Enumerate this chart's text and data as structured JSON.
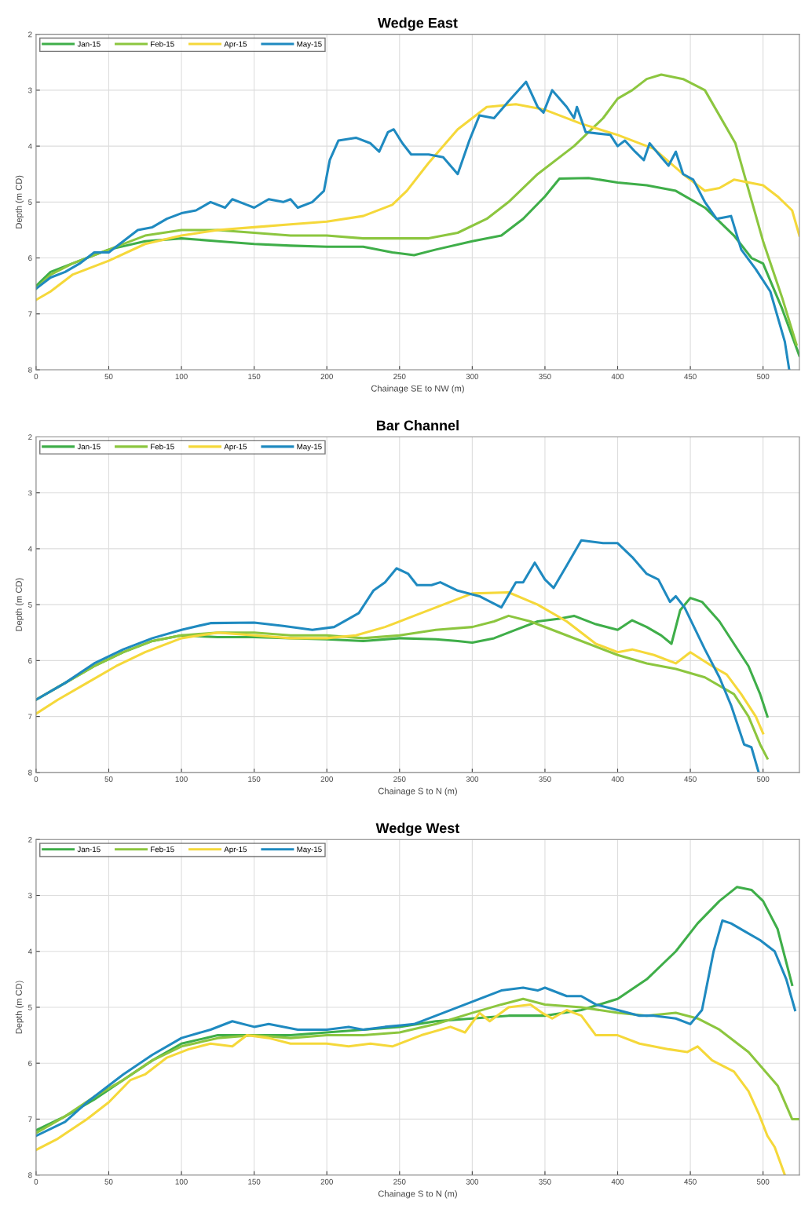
{
  "chart_data": [
    {
      "type": "line",
      "title": "Wedge East",
      "xlabel": "Chainage SE to NW (m)",
      "ylabel": "Depth (m CD)",
      "xlim": [
        0,
        525
      ],
      "ylim": [
        8,
        2
      ],
      "xticks": [
        0,
        50,
        100,
        150,
        200,
        250,
        300,
        350,
        400,
        450,
        500
      ],
      "yticks": [
        2,
        3,
        4,
        5,
        6,
        7,
        8
      ],
      "grid": true,
      "legend": "top left",
      "series": [
        {
          "name": "Jan-15",
          "color": "#3fae49",
          "x": [
            0,
            10,
            25,
            50,
            75,
            100,
            125,
            150,
            175,
            200,
            225,
            245,
            260,
            275,
            300,
            320,
            335,
            350,
            360,
            380,
            400,
            420,
            440,
            460,
            468,
            480,
            492,
            500,
            513,
            525
          ],
          "values": [
            6.5,
            6.25,
            6.1,
            5.85,
            5.7,
            5.65,
            5.7,
            5.75,
            5.78,
            5.8,
            5.8,
            5.9,
            5.95,
            5.85,
            5.7,
            5.6,
            5.3,
            4.9,
            4.58,
            4.57,
            4.65,
            4.7,
            4.8,
            5.1,
            5.3,
            5.6,
            6.0,
            6.1,
            6.9,
            7.75
          ]
        },
        {
          "name": "Feb-15",
          "color": "#8cc63f",
          "x": [
            0,
            10,
            25,
            50,
            75,
            100,
            125,
            150,
            175,
            200,
            225,
            250,
            270,
            290,
            310,
            325,
            345,
            370,
            390,
            400,
            410,
            420,
            430,
            445,
            460,
            481,
            500,
            513,
            523
          ],
          "values": [
            6.55,
            6.3,
            6.1,
            5.85,
            5.6,
            5.5,
            5.5,
            5.55,
            5.6,
            5.6,
            5.65,
            5.65,
            5.65,
            5.55,
            5.3,
            5.0,
            4.5,
            4.0,
            3.5,
            3.15,
            3.0,
            2.8,
            2.72,
            2.8,
            3.0,
            3.95,
            5.7,
            6.7,
            7.55
          ]
        },
        {
          "name": "Apr-15",
          "color": "#f5d83a",
          "x": [
            0,
            10,
            25,
            50,
            75,
            100,
            125,
            150,
            175,
            200,
            225,
            245,
            255,
            270,
            290,
            310,
            330,
            350,
            375,
            400,
            425,
            445,
            460,
            470,
            480,
            500,
            510,
            520,
            525
          ],
          "values": [
            6.75,
            6.6,
            6.3,
            6.05,
            5.75,
            5.6,
            5.5,
            5.45,
            5.4,
            5.35,
            5.25,
            5.05,
            4.8,
            4.3,
            3.7,
            3.3,
            3.25,
            3.35,
            3.6,
            3.8,
            4.05,
            4.5,
            4.8,
            4.75,
            4.6,
            4.7,
            4.9,
            5.15,
            5.6
          ]
        },
        {
          "name": "May-15",
          "color": "#1f8ac0",
          "x": [
            0,
            10,
            20,
            30,
            40,
            50,
            60,
            70,
            80,
            90,
            100,
            110,
            120,
            130,
            135,
            145,
            150,
            160,
            170,
            175,
            180,
            190,
            198,
            202,
            208,
            220,
            230,
            236,
            242,
            246,
            252,
            258,
            270,
            280,
            290,
            298,
            305,
            315,
            325,
            337,
            345,
            349,
            355,
            365,
            370,
            372,
            378,
            395,
            400,
            405,
            412,
            418,
            422,
            430,
            435,
            440,
            445,
            452,
            460,
            468,
            478,
            485,
            495,
            505,
            515,
            518
          ],
          "values": [
            6.55,
            6.35,
            6.25,
            6.1,
            5.9,
            5.9,
            5.7,
            5.5,
            5.45,
            5.3,
            5.2,
            5.15,
            5.0,
            5.1,
            4.95,
            5.05,
            5.1,
            4.95,
            5.0,
            4.95,
            5.1,
            5.0,
            4.8,
            4.25,
            3.9,
            3.85,
            3.95,
            4.1,
            3.75,
            3.7,
            3.95,
            4.15,
            4.15,
            4.2,
            4.5,
            3.9,
            3.45,
            3.5,
            3.2,
            2.85,
            3.3,
            3.4,
            3.0,
            3.3,
            3.5,
            3.3,
            3.75,
            3.8,
            4.0,
            3.9,
            4.1,
            4.25,
            3.95,
            4.2,
            4.35,
            4.1,
            4.5,
            4.6,
            5.0,
            5.3,
            5.25,
            5.85,
            6.2,
            6.6,
            7.5,
            8.0
          ]
        }
      ]
    },
    {
      "type": "line",
      "title": "Bar Channel",
      "xlabel": "Chainage S to N (m)",
      "ylabel": "Depth (m CD)",
      "xlim": [
        0,
        525
      ],
      "ylim": [
        8,
        2
      ],
      "xticks": [
        0,
        50,
        100,
        150,
        200,
        250,
        300,
        350,
        400,
        450,
        500
      ],
      "yticks": [
        2,
        3,
        4,
        5,
        6,
        7,
        8
      ],
      "grid": true,
      "legend": "top left",
      "series": [
        {
          "name": "Jan-15",
          "color": "#3fae49",
          "x": [
            0,
            20,
            40,
            60,
            80,
            100,
            125,
            150,
            175,
            200,
            225,
            250,
            275,
            290,
            300,
            315,
            330,
            345,
            360,
            370,
            385,
            400,
            410,
            420,
            430,
            437,
            443,
            450,
            458,
            470,
            480,
            490,
            498,
            503
          ],
          "values": [
            6.7,
            6.4,
            6.1,
            5.85,
            5.65,
            5.55,
            5.58,
            5.58,
            5.6,
            5.62,
            5.65,
            5.6,
            5.62,
            5.65,
            5.68,
            5.6,
            5.45,
            5.3,
            5.25,
            5.2,
            5.35,
            5.45,
            5.28,
            5.4,
            5.55,
            5.7,
            5.1,
            4.88,
            4.95,
            5.3,
            5.7,
            6.1,
            6.6,
            7.0
          ]
        },
        {
          "name": "Feb-15",
          "color": "#8cc63f",
          "x": [
            0,
            20,
            40,
            60,
            80,
            100,
            125,
            150,
            175,
            200,
            225,
            250,
            275,
            300,
            315,
            325,
            340,
            360,
            380,
            400,
            420,
            440,
            460,
            480,
            490,
            498,
            503
          ],
          "values": [
            6.7,
            6.4,
            6.1,
            5.85,
            5.65,
            5.55,
            5.5,
            5.5,
            5.55,
            5.55,
            5.6,
            5.55,
            5.45,
            5.4,
            5.3,
            5.2,
            5.3,
            5.5,
            5.7,
            5.9,
            6.05,
            6.15,
            6.3,
            6.6,
            7.0,
            7.5,
            7.75
          ]
        },
        {
          "name": "Apr-15",
          "color": "#f5d83a",
          "x": [
            0,
            15,
            35,
            55,
            75,
            100,
            125,
            150,
            175,
            200,
            220,
            240,
            260,
            280,
            300,
            325,
            345,
            365,
            385,
            400,
            410,
            425,
            440,
            450,
            465,
            475,
            485,
            495,
            500
          ],
          "values": [
            6.95,
            6.7,
            6.4,
            6.1,
            5.85,
            5.6,
            5.5,
            5.55,
            5.6,
            5.6,
            5.55,
            5.4,
            5.2,
            5.0,
            4.8,
            4.78,
            5.0,
            5.3,
            5.7,
            5.85,
            5.8,
            5.9,
            6.05,
            5.85,
            6.1,
            6.25,
            6.6,
            7.0,
            7.3
          ]
        },
        {
          "name": "May-15",
          "color": "#1f8ac0",
          "x": [
            0,
            20,
            40,
            60,
            80,
            100,
            120,
            150,
            170,
            190,
            205,
            222,
            232,
            240,
            248,
            256,
            262,
            272,
            278,
            290,
            305,
            320,
            330,
            335,
            343,
            350,
            356,
            365,
            375,
            390,
            400,
            410,
            420,
            428,
            436,
            440,
            446,
            460,
            470,
            478,
            487,
            492,
            497
          ],
          "values": [
            6.7,
            6.4,
            6.05,
            5.8,
            5.6,
            5.45,
            5.33,
            5.32,
            5.38,
            5.45,
            5.4,
            5.15,
            4.75,
            4.6,
            4.35,
            4.45,
            4.65,
            4.65,
            4.6,
            4.75,
            4.85,
            5.05,
            4.6,
            4.6,
            4.25,
            4.55,
            4.7,
            4.3,
            3.85,
            3.9,
            3.9,
            4.15,
            4.45,
            4.55,
            4.95,
            4.85,
            5.05,
            5.8,
            6.3,
            6.8,
            7.5,
            7.55,
            8.0
          ]
        }
      ]
    },
    {
      "type": "line",
      "title": "Wedge West",
      "xlabel": "Chainage S to N (m)",
      "ylabel": "Depth (m CD)",
      "xlim": [
        0,
        525
      ],
      "ylim": [
        8,
        2
      ],
      "xticks": [
        0,
        50,
        100,
        150,
        200,
        250,
        300,
        350,
        400,
        450,
        500
      ],
      "yticks": [
        2,
        3,
        4,
        5,
        6,
        7,
        8
      ],
      "grid": true,
      "legend": "top left",
      "series": [
        {
          "name": "Jan-15",
          "color": "#3fae49",
          "x": [
            0,
            20,
            40,
            60,
            80,
            100,
            125,
            150,
            175,
            200,
            225,
            250,
            275,
            300,
            325,
            350,
            375,
            400,
            420,
            440,
            455,
            470,
            482,
            492,
            500,
            510,
            520
          ],
          "values": [
            7.2,
            6.95,
            6.65,
            6.3,
            5.95,
            5.65,
            5.5,
            5.5,
            5.5,
            5.45,
            5.4,
            5.35,
            5.25,
            5.2,
            5.15,
            5.15,
            5.05,
            4.85,
            4.5,
            4.0,
            3.5,
            3.1,
            2.85,
            2.9,
            3.1,
            3.6,
            4.6
          ]
        },
        {
          "name": "Feb-15",
          "color": "#8cc63f",
          "x": [
            0,
            20,
            40,
            60,
            80,
            100,
            125,
            150,
            175,
            200,
            225,
            250,
            275,
            300,
            320,
            335,
            350,
            375,
            400,
            420,
            440,
            455,
            470,
            490,
            510,
            520,
            525
          ],
          "values": [
            7.25,
            6.95,
            6.6,
            6.3,
            5.95,
            5.7,
            5.55,
            5.5,
            5.55,
            5.5,
            5.5,
            5.45,
            5.3,
            5.1,
            4.95,
            4.85,
            4.95,
            5.0,
            5.1,
            5.15,
            5.1,
            5.2,
            5.4,
            5.8,
            6.4,
            7.0,
            7.0
          ]
        },
        {
          "name": "Apr-15",
          "color": "#f5d83a",
          "x": [
            0,
            15,
            35,
            50,
            65,
            75,
            90,
            105,
            120,
            135,
            145,
            160,
            175,
            200,
            215,
            230,
            245,
            265,
            285,
            295,
            305,
            312,
            325,
            340,
            348,
            355,
            365,
            375,
            385,
            400,
            415,
            435,
            448,
            455,
            465,
            480,
            490,
            497,
            503,
            508,
            515
          ],
          "values": [
            7.55,
            7.35,
            7.0,
            6.7,
            6.3,
            6.2,
            5.9,
            5.75,
            5.65,
            5.7,
            5.5,
            5.55,
            5.65,
            5.65,
            5.7,
            5.65,
            5.7,
            5.5,
            5.35,
            5.45,
            5.1,
            5.25,
            5.0,
            4.95,
            5.1,
            5.2,
            5.05,
            5.15,
            5.5,
            5.5,
            5.65,
            5.75,
            5.8,
            5.7,
            5.95,
            6.15,
            6.5,
            6.9,
            7.3,
            7.5,
            8.0
          ]
        },
        {
          "name": "May-15",
          "color": "#1f8ac0",
          "x": [
            0,
            20,
            35,
            45,
            60,
            80,
            100,
            120,
            135,
            150,
            160,
            180,
            200,
            215,
            225,
            240,
            260,
            280,
            300,
            320,
            335,
            345,
            350,
            365,
            375,
            385,
            400,
            415,
            425,
            440,
            450,
            458,
            466,
            472,
            478,
            488,
            498,
            508,
            516,
            522
          ],
          "values": [
            7.3,
            7.05,
            6.7,
            6.5,
            6.2,
            5.85,
            5.55,
            5.4,
            5.25,
            5.35,
            5.3,
            5.4,
            5.4,
            5.35,
            5.4,
            5.35,
            5.3,
            5.1,
            4.9,
            4.7,
            4.65,
            4.7,
            4.65,
            4.8,
            4.8,
            4.95,
            5.05,
            5.15,
            5.15,
            5.2,
            5.3,
            5.05,
            4.0,
            3.45,
            3.5,
            3.65,
            3.8,
            4.0,
            4.5,
            5.05
          ]
        }
      ]
    }
  ]
}
